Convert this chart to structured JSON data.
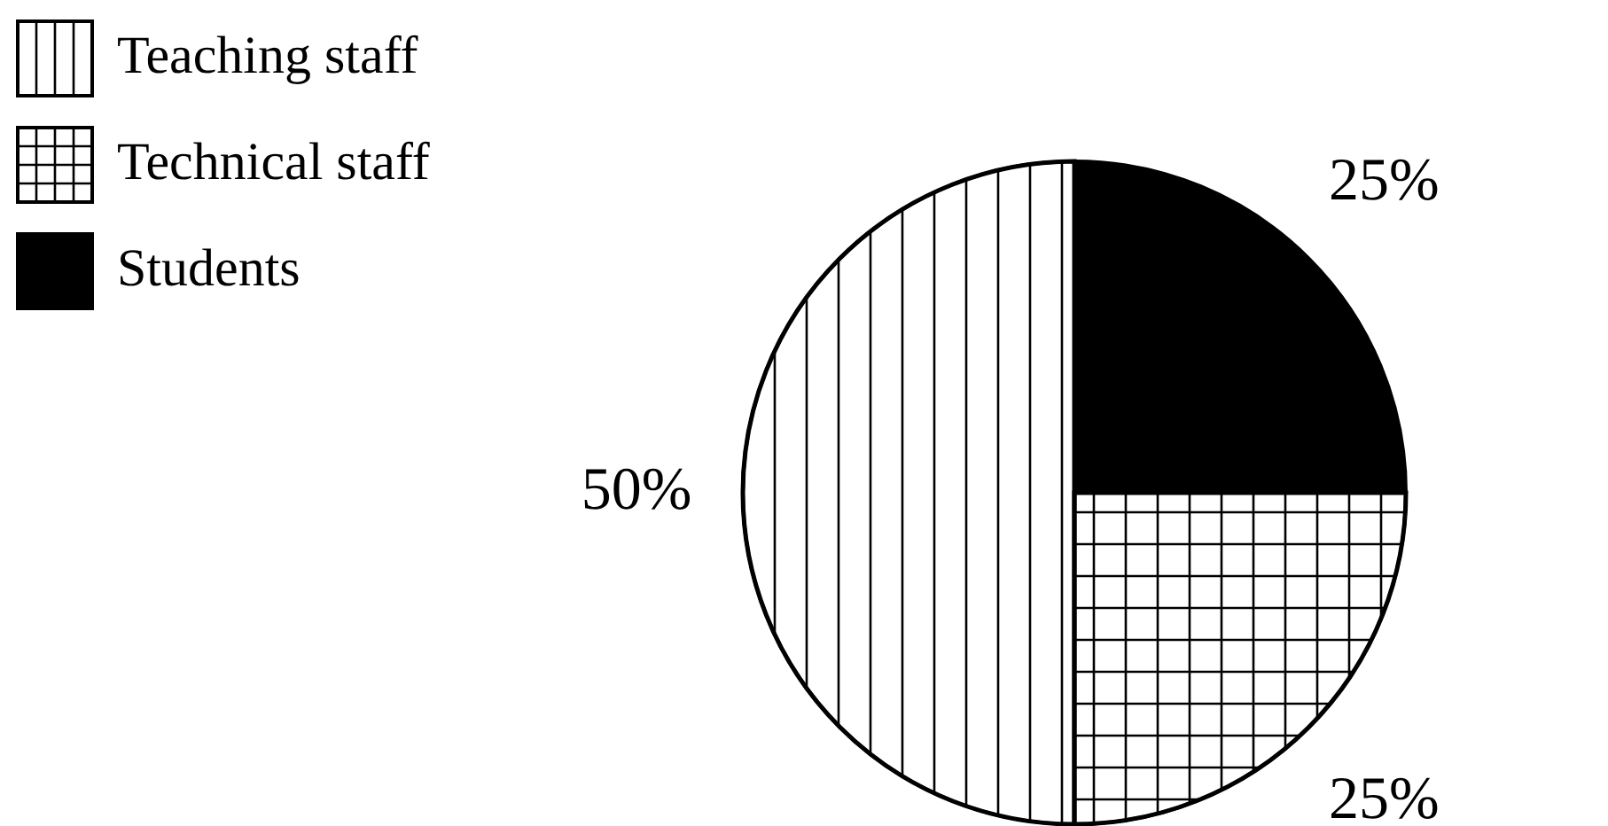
{
  "chart_data": {
    "type": "pie",
    "categories": [
      "Teaching staff",
      "Technical staff",
      "Students"
    ],
    "values": [
      50,
      25,
      25
    ],
    "colors": [
      "#ffffff",
      "#ffffff",
      "#000000"
    ],
    "value_labels": [
      "50%",
      "25%",
      "25%"
    ],
    "legend": "top left"
  }
}
